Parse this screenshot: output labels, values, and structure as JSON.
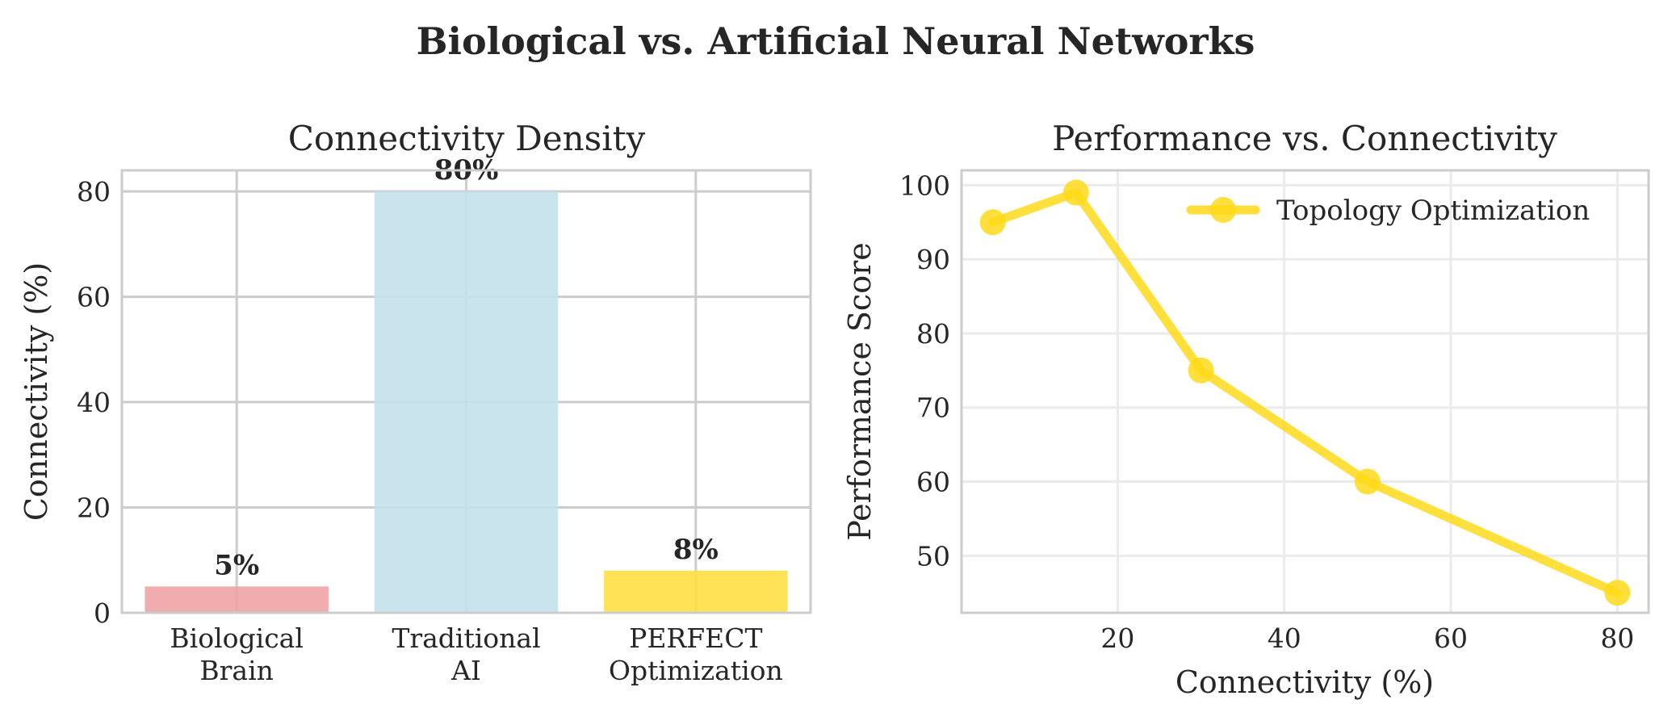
{
  "figure": {
    "title": "Biological vs. Artificial Neural Networks"
  },
  "chart_data": [
    {
      "type": "bar",
      "title": "Connectivity Density",
      "xlabel": "",
      "ylabel": "Connectivity (%)",
      "categories": [
        [
          "Biological",
          "Brain"
        ],
        [
          "Traditional",
          "AI"
        ],
        [
          "PERFECT",
          "Optimization"
        ]
      ],
      "values": [
        5,
        80,
        8
      ],
      "value_labels": [
        "5%",
        "80%",
        "8%"
      ],
      "colors": [
        "#f0a3a4",
        "#c4e1ec",
        "#ffdf44"
      ],
      "ylim": [
        0,
        84
      ],
      "yticks": [
        0,
        20,
        40,
        60,
        80
      ],
      "grid": true
    },
    {
      "type": "line",
      "title": "Performance vs. Connectivity",
      "xlabel": "Connectivity (%)",
      "ylabel": "Performance Score",
      "series": [
        {
          "name": "Topology Optimization",
          "x": [
            5,
            15,
            30,
            50,
            80
          ],
          "y": [
            95,
            99,
            75,
            60,
            45
          ],
          "color": "#ffd919"
        }
      ],
      "xlim": [
        1.25,
        83.75
      ],
      "ylim": [
        42.3,
        102
      ],
      "xticks": [
        20,
        40,
        60,
        80
      ],
      "yticks": [
        50,
        60,
        70,
        80,
        90,
        100
      ],
      "legend": "top-right",
      "grid": true
    }
  ]
}
